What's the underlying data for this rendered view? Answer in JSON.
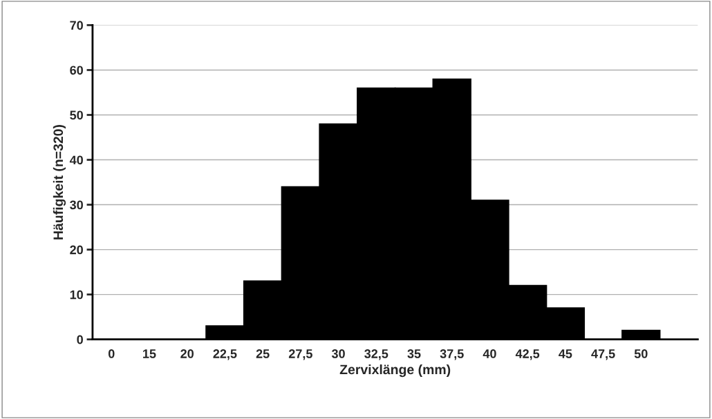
{
  "chart_data": {
    "type": "bar",
    "xlabel": "Zervixlänge (mm)",
    "ylabel": "Häufigkeit (n=320)",
    "categories": [
      "0",
      "15",
      "20",
      "22,5",
      "25",
      "27,5",
      "30",
      "32,5",
      "35",
      "37,5",
      "40",
      "42,5",
      "45",
      "47,5",
      "50",
      null
    ],
    "values": [
      0,
      0,
      0,
      3,
      13,
      34,
      48,
      56,
      56,
      58,
      31,
      12,
      7,
      0,
      2,
      null
    ],
    "color": "#000000",
    "ylim": [
      0,
      70
    ],
    "yticks": [
      0,
      10,
      20,
      30,
      40,
      50,
      60,
      70
    ],
    "grid": "y",
    "legend": false
  }
}
